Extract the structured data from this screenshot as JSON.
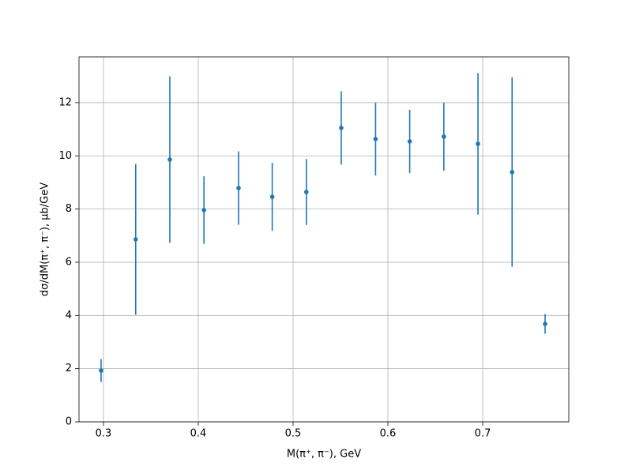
{
  "chart_data": {
    "type": "errorbar",
    "x_label": "M(π⁺, π⁻), GeV",
    "y_label": "dσ/dM(π⁺, π⁻), μb/GeV",
    "x": [
      0.2975,
      0.334,
      0.37,
      0.406,
      0.4425,
      0.478,
      0.514,
      0.5508,
      0.587,
      0.623,
      0.659,
      0.695,
      0.731,
      0.7658
    ],
    "series": [
      {
        "color": "#1f77b4",
        "values": [
          1.93,
          6.86,
          9.86,
          7.96,
          8.79,
          8.46,
          8.64,
          11.05,
          10.63,
          10.54,
          10.72,
          10.45,
          9.39,
          3.68
        ],
        "errors": [
          0.43,
          2.83,
          3.13,
          1.27,
          1.38,
          1.28,
          1.24,
          1.38,
          1.37,
          1.19,
          1.28,
          2.66,
          3.56,
          0.37
        ]
      }
    ],
    "xlim": [
      0.2742,
      0.7908
    ],
    "ylim": [
      0,
      13.72
    ],
    "xticks": [
      0.3,
      0.4,
      0.5,
      0.6,
      0.7
    ],
    "yticks": [
      0,
      2,
      4,
      6,
      8,
      10,
      12
    ],
    "grid": true
  }
}
